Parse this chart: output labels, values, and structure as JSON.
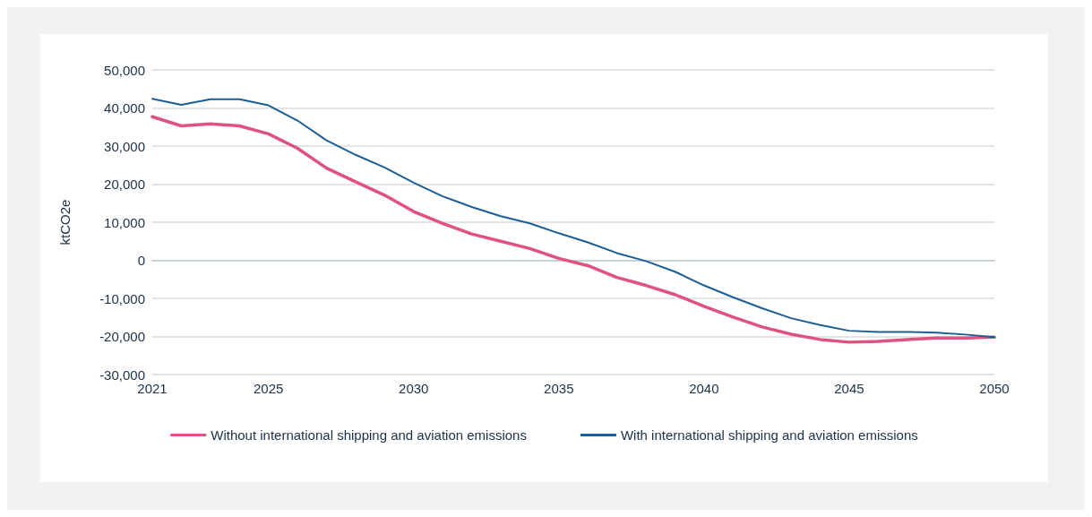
{
  "chart_data": {
    "type": "line",
    "ylabel": "ktCO2e",
    "x": [
      2021,
      2022,
      2023,
      2024,
      2025,
      2026,
      2027,
      2028,
      2029,
      2030,
      2031,
      2032,
      2033,
      2034,
      2035,
      2036,
      2037,
      2038,
      2039,
      2040,
      2041,
      2042,
      2043,
      2044,
      2045,
      2046,
      2047,
      2048,
      2049,
      2050
    ],
    "series": [
      {
        "name": "Without international shipping and aviation emissions",
        "color": "#e0527e",
        "values": [
          37700,
          35300,
          35800,
          35300,
          33200,
          29400,
          24200,
          20600,
          17100,
          12800,
          9700,
          6900,
          5000,
          3100,
          500,
          -1400,
          -4500,
          -6600,
          -9000,
          -12100,
          -14900,
          -17500,
          -19400,
          -20800,
          -21500,
          -21300,
          -20800,
          -20400,
          -20400,
          -20200
        ]
      },
      {
        "name": "With international shipping and aviation emissions",
        "color": "#1b5e96",
        "values": [
          42400,
          40800,
          42300,
          42300,
          40700,
          36700,
          31500,
          27700,
          24400,
          20400,
          16800,
          14000,
          11600,
          9700,
          7100,
          4700,
          1900,
          -200,
          -3000,
          -6600,
          -9700,
          -12600,
          -15200,
          -17000,
          -18500,
          -18800,
          -18800,
          -19000,
          -19500,
          -20200
        ]
      }
    ],
    "xlim": [
      2021,
      2050
    ],
    "xticks": [
      2021,
      2025,
      2030,
      2035,
      2040,
      2045,
      2050
    ],
    "ylim": [
      -30000,
      50000
    ],
    "yticks": [
      {
        "value": -30000,
        "label": "-30,000"
      },
      {
        "value": -20000,
        "label": "-20,000"
      },
      {
        "value": -10000,
        "label": "-10,000"
      },
      0,
      {
        "value": 10000,
        "label": "10,000"
      },
      {
        "value": 20000,
        "label": "20,000"
      },
      {
        "value": 30000,
        "label": "30,000"
      },
      {
        "value": 40000,
        "label": "40,000"
      },
      {
        "value": 50000,
        "label": "50,000"
      }
    ],
    "grid": "y",
    "legend": "bottom",
    "marker": "none",
    "line_style": "solid"
  }
}
